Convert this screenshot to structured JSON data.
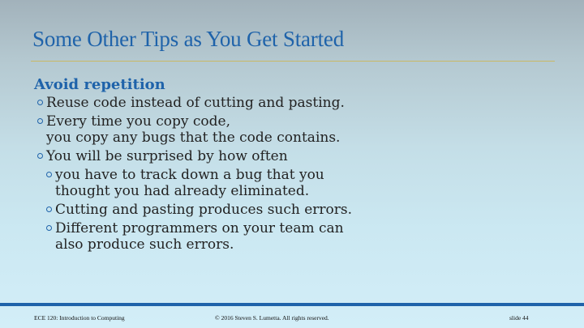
{
  "slide": {
    "title": "Some Other Tips as You Get Started",
    "section_heading": "Avoid repetition",
    "items": [
      {
        "level": 1,
        "lines": [
          "Reuse code instead of cutting and pasting."
        ]
      },
      {
        "level": 1,
        "lines": [
          "Every time you copy code,",
          "you copy any bugs that the code contains."
        ]
      },
      {
        "level": 1,
        "lines": [
          "You will be surprised by how often"
        ]
      },
      {
        "level": 2,
        "lines": [
          "you have to track down a bug that you",
          "thought you had already eliminated."
        ]
      },
      {
        "level": 2,
        "lines": [
          "Cutting and pasting produces such errors."
        ]
      },
      {
        "level": 2,
        "lines": [
          "Different programmers on your team can",
          "also produce such errors."
        ]
      }
    ]
  },
  "footer": {
    "course": "ECE 120: Introduction to Computing",
    "copyright": "© 2016 Steven S. Lumetta.  All rights reserved.",
    "slide_number": "slide 44"
  },
  "colors": {
    "accent": "#1f63aa",
    "title_rule": "#c9b866",
    "text": "#222222"
  }
}
